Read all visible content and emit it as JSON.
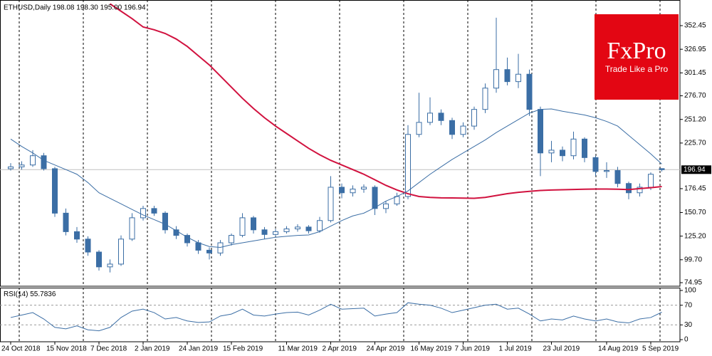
{
  "chart_data": [
    {
      "type": "candlestick",
      "title": "ETHUSD,Daily  198.08 198.30 195.00 196.94",
      "categories": [
        "24 Oct 2018",
        null,
        null,
        null,
        "15 Nov 2018",
        null,
        null,
        null,
        "7 Dec 2018",
        null,
        null,
        null,
        "2 Jan 2019",
        null,
        null,
        null,
        "24 Jan 2019",
        null,
        null,
        null,
        "15 Feb 2019",
        null,
        null,
        null,
        null,
        "11 Mar 2019",
        null,
        null,
        null,
        "2 Apr 2019",
        null,
        null,
        null,
        "24 Apr 2019",
        null,
        null,
        null,
        "16 May 2019",
        null,
        null,
        null,
        "7 Jun 2019",
        null,
        null,
        null,
        "1 Jul 2019",
        null,
        null,
        null,
        "23 Jul 2019",
        null,
        null,
        null,
        null,
        "14 Aug 2019",
        null,
        null,
        null,
        "5 Sep 2019",
        null
      ],
      "open": [
        198,
        200,
        202,
        212,
        198,
        150,
        130,
        122,
        108,
        92,
        95,
        122,
        145,
        155,
        150,
        132,
        126,
        118,
        110,
        107,
        118,
        126,
        145,
        132,
        127,
        130,
        133,
        135,
        131,
        142,
        178,
        172,
        176,
        178,
        155,
        160,
        168,
        235,
        248,
        258,
        250,
        235,
        244,
        262,
        285,
        305,
        292,
        300,
        262,
        215,
        218,
        212,
        230,
        210,
        195,
        196,
        182,
        172,
        178,
        198.08
      ],
      "high": [
        204,
        206,
        218,
        215,
        200,
        155,
        135,
        125,
        110,
        100,
        126,
        150,
        158,
        158,
        152,
        136,
        128,
        121,
        113,
        121,
        128,
        150,
        147,
        135,
        133,
        136,
        138,
        137,
        146,
        190,
        182,
        180,
        181,
        180,
        163,
        172,
        245,
        280,
        275,
        262,
        253,
        248,
        265,
        290,
        361,
        318,
        322,
        305,
        265,
        228,
        222,
        238,
        232,
        212,
        205,
        200,
        184,
        182,
        194,
        198.3
      ],
      "low": [
        196,
        197,
        200,
        196,
        146,
        126,
        118,
        104,
        88,
        86,
        93,
        120,
        142,
        147,
        128,
        122,
        114,
        106,
        100,
        104,
        115,
        124,
        128,
        122,
        125,
        128,
        130,
        128,
        129,
        140,
        166,
        168,
        172,
        148,
        150,
        158,
        165,
        232,
        245,
        245,
        230,
        232,
        240,
        258,
        280,
        288,
        285,
        255,
        190,
        205,
        206,
        208,
        205,
        190,
        188,
        178,
        165,
        168,
        175,
        195
      ],
      "close": [
        200,
        202,
        212,
        198,
        150,
        130,
        122,
        108,
        92,
        95,
        122,
        145,
        155,
        150,
        132,
        126,
        118,
        110,
        107,
        118,
        126,
        145,
        132,
        127,
        130,
        133,
        135,
        131,
        142,
        178,
        172,
        176,
        178,
        155,
        160,
        168,
        235,
        248,
        258,
        250,
        235,
        244,
        262,
        285,
        305,
        292,
        300,
        262,
        215,
        218,
        212,
        230,
        210,
        195,
        196,
        182,
        172,
        178,
        192,
        196.94
      ],
      "color_up": "#ffffff",
      "color_down": "#3b6ea5",
      "color_edge": "#3b6ea5",
      "lines": [
        {
          "color": "#d1123f",
          "values": [
            null,
            null,
            null,
            null,
            null,
            null,
            null,
            null,
            null,
            376,
            368,
            360,
            351,
            348,
            344,
            338,
            330,
            320,
            310,
            298,
            286,
            274,
            263,
            253,
            244,
            236,
            228,
            220,
            213,
            207,
            202,
            197,
            192,
            186,
            180,
            175,
            171,
            168,
            167,
            166.5,
            166.4,
            166.2,
            166,
            167,
            169,
            171,
            172.5,
            173.5,
            174.5,
            175,
            175.3,
            175.6,
            175.8,
            176,
            176,
            175.8,
            175.5,
            176.5,
            177.5,
            178.7
          ]
        },
        {
          "color": "#3b6ea5",
          "values": [
            230,
            222,
            215,
            207,
            202,
            197,
            192,
            183,
            172,
            166,
            160,
            154,
            148,
            143,
            138,
            131,
            124,
            118,
            114,
            113,
            116,
            118,
            120,
            122,
            124,
            125,
            126,
            126.5,
            130,
            136,
            142,
            147,
            150,
            156,
            163,
            168,
            174,
            183,
            192,
            200,
            208,
            215,
            222,
            229,
            237,
            244,
            251,
            258,
            262,
            262.5,
            260,
            258,
            256,
            253,
            249,
            244,
            234,
            224,
            214,
            203
          ]
        }
      ],
      "ylim": [
        71.11,
        380.12
      ],
      "yticks": [
        74.95,
        {
          "value": 99.7,
          "label": "99.70"
        },
        {
          "value": 125.2,
          "label": "125.20"
        },
        {
          "value": 150.7,
          "label": "150.70"
        },
        176.45,
        {
          "value": 225.7,
          "label": "225.70"
        },
        {
          "value": 251.2,
          "label": "251.20"
        },
        {
          "value": 276.7,
          "label": "276.70"
        },
        301.45,
        326.95,
        352.45
      ],
      "logo": {
        "brand": "FxPro",
        "tagline": "Trade Like a Pro"
      }
    },
    {
      "type": "line",
      "title": "RSI(14)",
      "color": "#3b6ea5",
      "values": [
        45,
        50,
        55,
        42,
        25,
        22,
        28,
        20,
        18,
        25,
        45,
        58,
        62,
        55,
        42,
        45,
        38,
        35,
        36,
        48,
        52,
        62,
        50,
        48,
        52,
        55,
        56,
        50,
        60,
        72,
        62,
        63,
        64,
        48,
        52,
        55,
        75,
        72,
        70,
        64,
        55,
        60,
        65,
        70,
        72,
        62,
        64,
        52,
        38,
        42,
        40,
        48,
        42,
        38,
        42,
        36,
        34,
        42,
        45,
        55.7836
      ],
      "ylim": [
        -4.3,
        105.7
      ],
      "yticks": [
        100,
        70,
        30,
        0
      ],
      "levels": [
        70,
        30
      ]
    }
  ]
}
